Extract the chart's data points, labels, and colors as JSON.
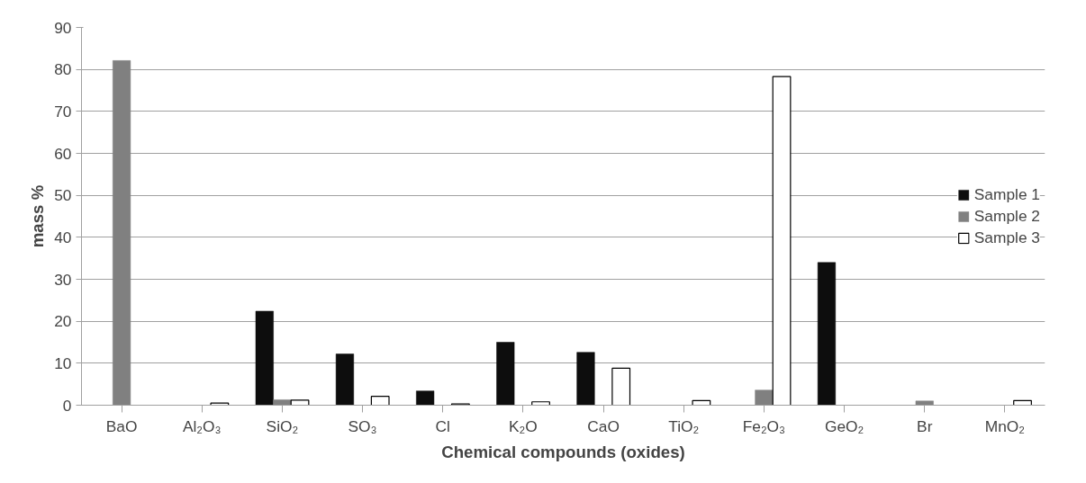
{
  "chart_data": {
    "type": "bar",
    "xlabel": "Chemical compounds (oxides)",
    "ylabel": "mass %",
    "categories": [
      "BaO",
      "Al₂O₃",
      "SiO₂",
      "SO₃",
      "Cl",
      "K₂O",
      "CaO",
      "TiO₂",
      "Fe₂O₃",
      "GeO₂",
      "Br",
      "MnO₂"
    ],
    "series": [
      {
        "name": "Sample 1",
        "color": "#0d0d0d",
        "values": [
          null,
          null,
          22.4,
          12.2,
          3.4,
          15,
          12.6,
          null,
          null,
          34,
          null,
          null
        ]
      },
      {
        "name": "Sample 2",
        "color": "#808080",
        "values": [
          82.1,
          null,
          1.3,
          null,
          null,
          null,
          null,
          null,
          3.6,
          null,
          1,
          null
        ]
      },
      {
        "name": "Sample 3",
        "color": "#ffffff",
        "values": [
          null,
          0.5,
          1.2,
          2.1,
          0.3,
          0.8,
          8.8,
          1.1,
          78.3,
          null,
          null,
          1.1
        ]
      }
    ],
    "ylim": [
      0,
      90
    ],
    "yticks": [
      0,
      10,
      20,
      30,
      40,
      50,
      60,
      70,
      80,
      90
    ],
    "grid": "y",
    "legend": "right"
  }
}
